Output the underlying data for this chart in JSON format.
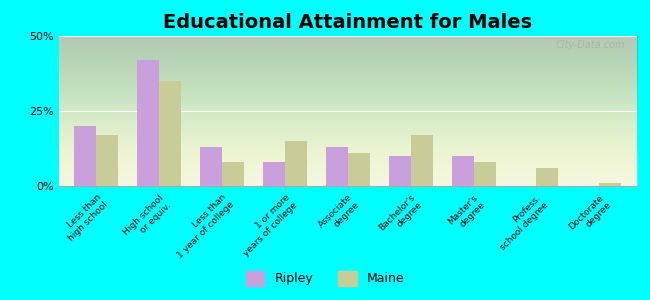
{
  "title": "Educational Attainment for Males",
  "categories": [
    "Less than\nhigh school",
    "High school\nor equiv.",
    "Less than\n1 year of college",
    "1 or more\nyears of college",
    "Associate\ndegree",
    "Bachelor's\ndegree",
    "Master's\ndegree",
    "Profess.\nschool degree",
    "Doctorate\ndegree"
  ],
  "ripley": [
    20,
    42,
    13,
    8,
    13,
    10,
    10,
    0,
    0
  ],
  "maine": [
    17,
    35,
    8,
    15,
    11,
    17,
    8,
    6,
    1
  ],
  "ripley_color": "#c9a0dc",
  "maine_color": "#c8cc99",
  "bg_plot": "#f0f5e0",
  "bg_figure": "#00ffff",
  "ylim": [
    0,
    50
  ],
  "yticks": [
    0,
    25,
    50
  ],
  "ytick_labels": [
    "0%",
    "25%",
    "50%"
  ],
  "bar_width": 0.35,
  "title_fontsize": 14,
  "tick_fontsize": 6.5,
  "legend_fontsize": 9,
  "watermark": "City-Data.com"
}
